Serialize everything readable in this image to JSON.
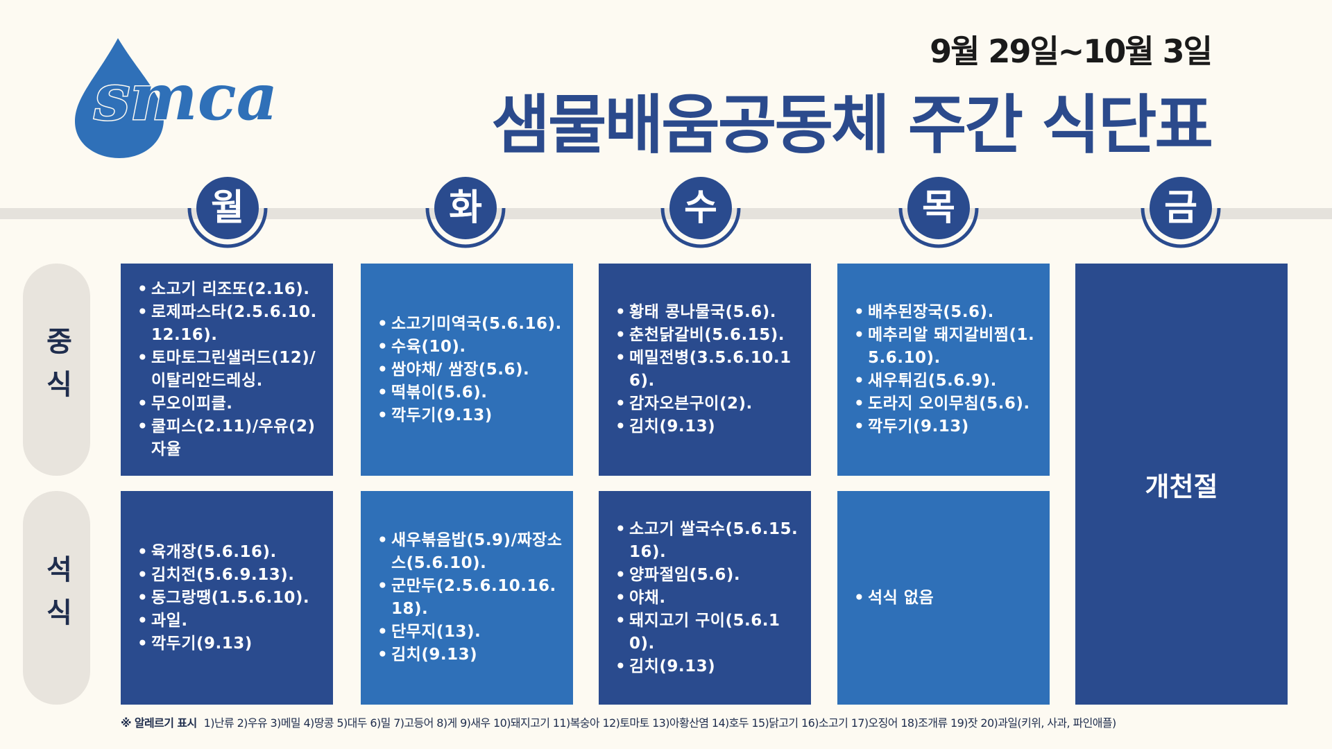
{
  "header": {
    "logo": "smca",
    "date": "9월 29일~10월 3일",
    "title": "샘물배움공동체 주간 식단표"
  },
  "days": [
    "월",
    "화",
    "수",
    "목",
    "금"
  ],
  "meals": [
    "중식",
    "석식"
  ],
  "menu": {
    "lunch": [
      [
        "소고기 리조또(2.16).",
        "로제파스타(2.5.6.10.12.16).",
        "토마토그린샐러드(12)/이탈리안드레싱.",
        "무오이피클.",
        "쿨피스(2.11)/우유(2) 자율"
      ],
      [
        "소고기미역국(5.6.16).",
        "수육(10).",
        "쌈야채/ 쌈장(5.6).",
        "떡볶이(5.6).",
        "깍두기(9.13)"
      ],
      [
        "황태 콩나물국(5.6).",
        "춘천닭갈비(5.6.15).",
        "메밀전병(3.5.6.10.16).",
        "감자오븐구이(2).",
        "김치(9.13)"
      ],
      [
        "배추된장국(5.6).",
        "메추리알 돼지갈비찜(1.5.6.10).",
        "새우튀김(5.6.9).",
        "도라지 오이무침(5.6).",
        "깍두기(9.13)"
      ]
    ],
    "dinner": [
      [
        "육개장(5.6.16).",
        "김치전(5.6.9.13).",
        "동그랑땡(1.5.6.10).",
        "과일.",
        "깍두기(9.13)"
      ],
      [
        "새우볶음밥(5.9)/짜장소스(5.6.10).",
        "군만두(2.5.6.10.16.18).",
        "단무지(13).",
        "김치(9.13)"
      ],
      [
        "소고기 쌀국수(5.6.15.16).",
        "양파절임(5.6).",
        "야채.",
        "돼지고기 구이(5.6.10).",
        "김치(9.13)"
      ],
      [
        "석식 없음"
      ]
    ],
    "holiday": "개천절"
  },
  "footnote": {
    "label": "※ 알레르기 표시",
    "text": "1)난류 2)우유 3)메밀 4)땅콩 5)대두 6)밀 7)고등어 8)게 9)새우 10)돼지고기 11)복숭아 12)토마토 13)아황산염 14)호두 15)닭고기 16)소고기 17)오징어 18)조개류 19)잣 20)과일(키위, 사과, 파인애플)"
  }
}
